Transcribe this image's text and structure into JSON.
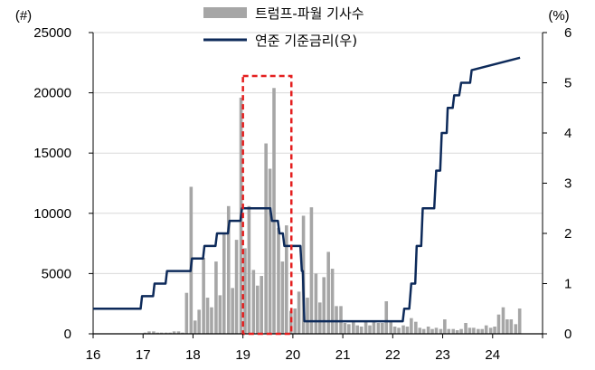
{
  "chart_data": {
    "type": "bar+line",
    "title": "",
    "left_axis": {
      "unit_label": "(#)",
      "ylim": [
        0,
        25000
      ],
      "ticks": [
        "0",
        "5000",
        "10000",
        "15000",
        "20000",
        "25000"
      ]
    },
    "right_axis": {
      "unit_label": "(%)",
      "ylim": [
        0,
        6
      ],
      "ticks": [
        "0",
        "1",
        "2",
        "3",
        "4",
        "5",
        "6"
      ]
    },
    "x_axis": {
      "xlim": [
        2016,
        2025
      ],
      "ticks": [
        "16",
        "17",
        "18",
        "19",
        "20",
        "21",
        "22",
        "23",
        "24"
      ]
    },
    "legend": {
      "position": "top",
      "entries": [
        {
          "name": "트럼프-파월 기사수",
          "kind": "bar",
          "color": "#a6a6a6"
        },
        {
          "name": "연준 기준금리(우)",
          "kind": "line",
          "color": "#0d2a5a"
        }
      ]
    },
    "highlight": {
      "x_range": [
        2019.0,
        2019.97
      ],
      "style": "red dashed box"
    },
    "series": [
      {
        "name": "트럼프-파월 기사수",
        "axis": "left",
        "kind": "bar",
        "color": "#a6a6a6",
        "x": [
          2017.0,
          2017.08,
          2017.17,
          2017.25,
          2017.33,
          2017.42,
          2017.5,
          2017.58,
          2017.67,
          2017.75,
          2017.83,
          2017.92,
          2018.0,
          2018.08,
          2018.17,
          2018.25,
          2018.33,
          2018.42,
          2018.5,
          2018.58,
          2018.67,
          2018.75,
          2018.83,
          2018.92,
          2019.0,
          2019.08,
          2019.17,
          2019.25,
          2019.33,
          2019.42,
          2019.5,
          2019.58,
          2019.67,
          2019.75,
          2019.83,
          2019.92,
          2020.0,
          2020.08,
          2020.17,
          2020.25,
          2020.33,
          2020.42,
          2020.5,
          2020.58,
          2020.67,
          2020.75,
          2020.83,
          2020.92,
          2021.0,
          2021.08,
          2021.17,
          2021.25,
          2021.33,
          2021.42,
          2021.5,
          2021.58,
          2021.67,
          2021.75,
          2021.83,
          2021.92,
          2022.0,
          2022.08,
          2022.17,
          2022.25,
          2022.33,
          2022.42,
          2022.5,
          2022.58,
          2022.67,
          2022.75,
          2022.83,
          2022.92,
          2023.0,
          2023.08,
          2023.17,
          2023.25,
          2023.33,
          2023.42,
          2023.5,
          2023.58,
          2023.67,
          2023.75,
          2023.83,
          2023.92,
          2024.0,
          2024.08,
          2024.17,
          2024.25,
          2024.33,
          2024.42,
          2024.5
        ],
        "values": [
          100,
          200,
          200,
          100,
          100,
          100,
          100,
          200,
          200,
          100,
          3400,
          12200,
          1100,
          2000,
          6300,
          3000,
          2200,
          6000,
          3200,
          8300,
          10600,
          3800,
          7800,
          19600,
          7100,
          10600,
          5300,
          4000,
          4800,
          15800,
          13700,
          20400,
          8800,
          6000,
          9000,
          1900,
          2100,
          3500,
          9800,
          3000,
          10500,
          5000,
          2600,
          4700,
          6800,
          5400,
          2300,
          2300,
          900,
          800,
          1100,
          700,
          600,
          1000,
          700,
          1000,
          900,
          900,
          2700,
          1000,
          600,
          500,
          700,
          600,
          1300,
          1000,
          500,
          400,
          600,
          400,
          500,
          400,
          1200,
          400,
          400,
          300,
          400,
          900,
          500,
          500,
          400,
          400,
          700,
          500,
          600,
          1600,
          2200,
          1200,
          1200,
          800,
          2100
        ]
      },
      {
        "name": "연준 기준금리(우)",
        "axis": "right",
        "kind": "step-line",
        "color": "#0d2a5a",
        "x": [
          2016.0,
          2016.95,
          2016.98,
          2017.2,
          2017.23,
          2017.45,
          2017.48,
          2017.95,
          2017.98,
          2018.2,
          2018.23,
          2018.45,
          2018.48,
          2018.7,
          2018.73,
          2018.95,
          2018.98,
          2019.55,
          2019.58,
          2019.7,
          2019.73,
          2019.8,
          2019.83,
          2020.15,
          2020.18,
          2020.2,
          2020.23,
          2022.2,
          2022.23,
          2022.33,
          2022.37,
          2022.45,
          2022.48,
          2022.57,
          2022.6,
          2022.83,
          2022.87,
          2022.95,
          2022.98,
          2023.08,
          2023.1,
          2023.2,
          2023.23,
          2023.33,
          2023.37,
          2023.55,
          2023.58,
          2024.55
        ],
        "values": [
          0.5,
          0.5,
          0.75,
          0.75,
          1.0,
          1.0,
          1.25,
          1.25,
          1.5,
          1.5,
          1.75,
          1.75,
          2.0,
          2.0,
          2.25,
          2.25,
          2.5,
          2.5,
          2.25,
          2.25,
          2.0,
          2.0,
          1.75,
          1.75,
          1.25,
          1.25,
          0.25,
          0.25,
          0.5,
          0.5,
          1.0,
          1.0,
          1.75,
          1.75,
          2.5,
          2.5,
          3.25,
          3.25,
          4.0,
          4.0,
          4.5,
          4.5,
          4.75,
          4.75,
          5.0,
          5.0,
          5.25,
          5.5
        ]
      }
    ]
  }
}
